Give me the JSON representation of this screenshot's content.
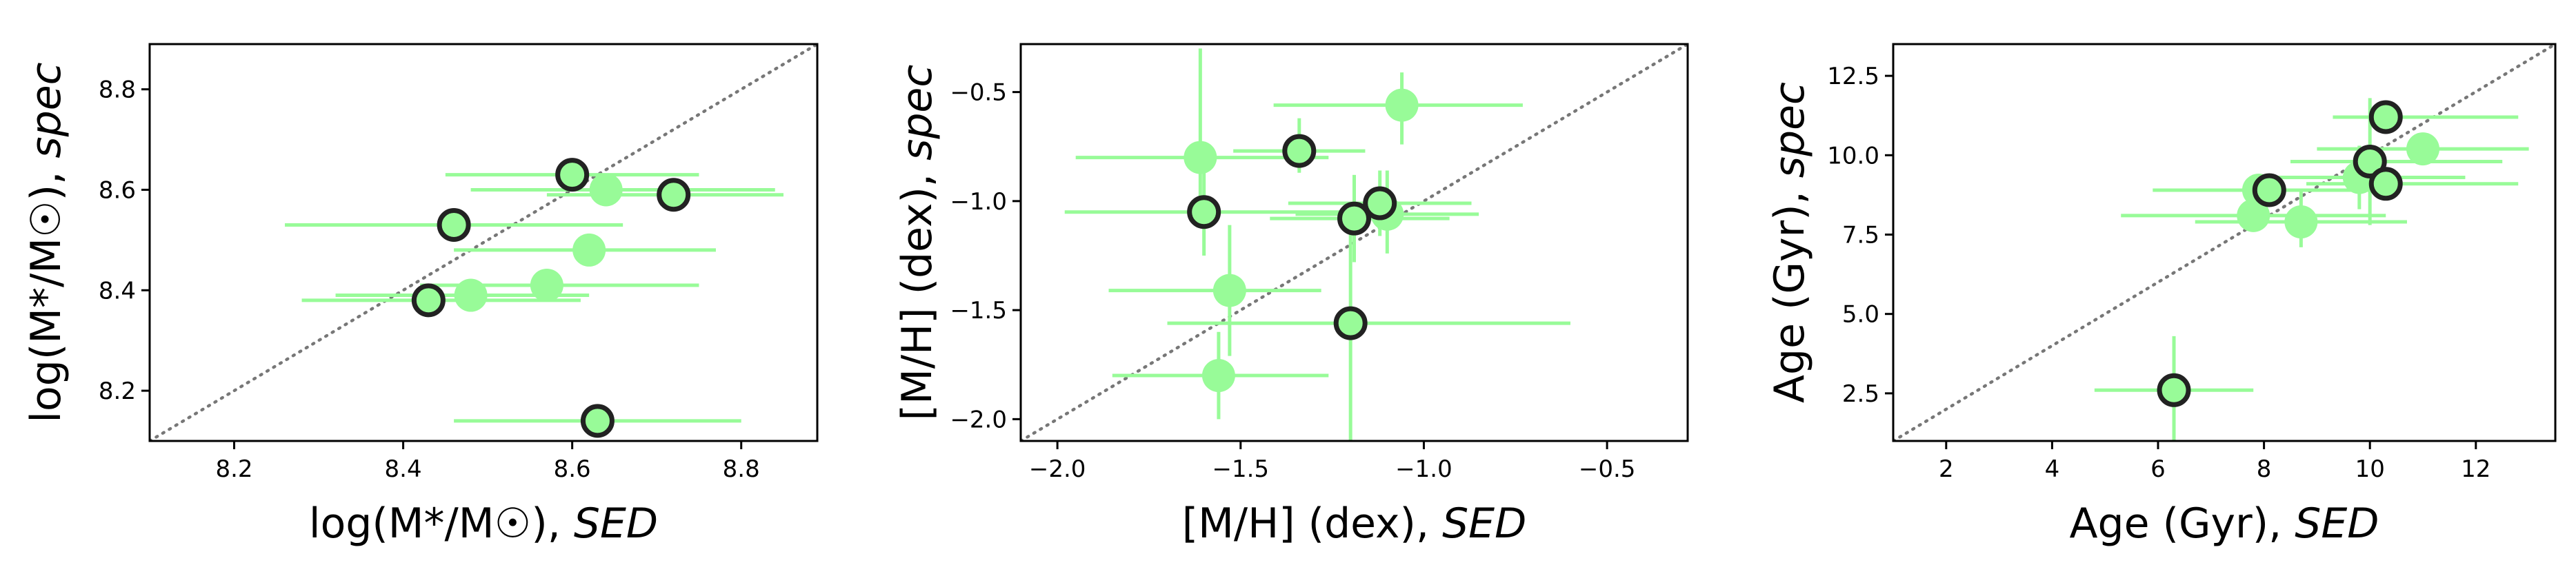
{
  "colors": {
    "marker_fill": "#98FB98",
    "marker_edge": "#222222",
    "errorbar": "#98FB98",
    "identity_line": "#777777",
    "axes": "#000000"
  },
  "chart_data": [
    {
      "type": "scatter",
      "xlabel": "log(M*/M☉), SED",
      "ylabel": "log(M*/M☉), spec",
      "xlim": [
        8.1,
        8.89
      ],
      "ylim": [
        8.1,
        8.89
      ],
      "xticks": [
        "8.2",
        "8.4",
        "8.6",
        "8.8"
      ],
      "yticks": [
        "8.2",
        "8.4",
        "8.6",
        "8.8"
      ],
      "identity_line": true,
      "series": [
        {
          "style": "filled-light",
          "points": [
            {
              "x": 8.64,
              "y": 8.6,
              "xerr": [
                0.16,
                0.2
              ],
              "yerr": [
                0.0,
                0.0
              ]
            },
            {
              "x": 8.62,
              "y": 8.48,
              "xerr": [
                0.16,
                0.15
              ],
              "yerr": [
                0.0,
                0.0
              ]
            },
            {
              "x": 8.57,
              "y": 8.41,
              "xerr": [
                0.15,
                0.18
              ],
              "yerr": [
                0.0,
                0.0
              ]
            },
            {
              "x": 8.48,
              "y": 8.39,
              "xerr": [
                0.16,
                0.14
              ],
              "yerr": [
                0.0,
                0.0
              ]
            }
          ]
        },
        {
          "style": "outlined",
          "points": [
            {
              "x": 8.6,
              "y": 8.63,
              "xerr": [
                0.15,
                0.15
              ],
              "yerr": [
                0.0,
                0.0
              ]
            },
            {
              "x": 8.72,
              "y": 8.59,
              "xerr": [
                0.15,
                0.13
              ],
              "yerr": [
                0.0,
                0.0
              ]
            },
            {
              "x": 8.46,
              "y": 8.53,
              "xerr": [
                0.2,
                0.2
              ],
              "yerr": [
                0.0,
                0.0
              ]
            },
            {
              "x": 8.43,
              "y": 8.38,
              "xerr": [
                0.15,
                0.18
              ],
              "yerr": [
                0.0,
                0.0
              ]
            },
            {
              "x": 8.63,
              "y": 8.14,
              "xerr": [
                0.17,
                0.17
              ],
              "yerr": [
                0.0,
                0.0
              ]
            }
          ]
        }
      ]
    },
    {
      "type": "scatter",
      "xlabel": "[M/H] (dex), SED",
      "ylabel": "[M/H] (dex), spec",
      "xlim": [
        -2.1,
        -0.28
      ],
      "ylim": [
        -2.1,
        -0.28
      ],
      "xticks": [
        "−2.0",
        "−1.5",
        "−1.0",
        "−0.5"
      ],
      "yticks": [
        "−2.0",
        "−1.5",
        "−1.0",
        "−0.5"
      ],
      "identity_line": true,
      "series": [
        {
          "style": "filled-light",
          "points": [
            {
              "x": -1.06,
              "y": -0.56,
              "xerr": [
                0.35,
                0.33
              ],
              "yerr": [
                0.18,
                0.15
              ]
            },
            {
              "x": -1.61,
              "y": -0.8,
              "xerr": [
                0.34,
                0.35
              ],
              "yerr": [
                0.2,
                0.5
              ]
            },
            {
              "x": -1.1,
              "y": -1.06,
              "xerr": [
                0.25,
                0.25
              ],
              "yerr": [
                0.18,
                0.2
              ]
            },
            {
              "x": -1.53,
              "y": -1.41,
              "xerr": [
                0.33,
                0.25
              ],
              "yerr": [
                0.3,
                0.3
              ]
            },
            {
              "x": -1.56,
              "y": -1.8,
              "xerr": [
                0.29,
                0.3
              ],
              "yerr": [
                0.2,
                0.2
              ]
            }
          ]
        },
        {
          "style": "outlined",
          "points": [
            {
              "x": -1.34,
              "y": -0.77,
              "xerr": [
                0.18,
                0.18
              ],
              "yerr": [
                0.1,
                0.15
              ]
            },
            {
              "x": -1.6,
              "y": -1.05,
              "xerr": [
                0.38,
                0.38
              ],
              "yerr": [
                0.2,
                0.2
              ]
            },
            {
              "x": -1.19,
              "y": -1.08,
              "xerr": [
                0.23,
                0.26
              ],
              "yerr": [
                0.2,
                0.2
              ]
            },
            {
              "x": -1.12,
              "y": -1.01,
              "xerr": [
                0.25,
                0.25
              ],
              "yerr": [
                0.15,
                0.15
              ]
            },
            {
              "x": -1.2,
              "y": -1.56,
              "xerr": [
                0.5,
                0.6
              ],
              "yerr": [
                0.55,
                0.55
              ]
            }
          ]
        }
      ]
    },
    {
      "type": "scatter",
      "xlabel": "Age (Gyr), SED",
      "ylabel": "Age (Gyr), spec",
      "xlim": [
        1.0,
        13.5
      ],
      "ylim": [
        1.0,
        13.5
      ],
      "xticks": [
        "2",
        "4",
        "6",
        "8",
        "10",
        "12"
      ],
      "yticks": [
        "2.5",
        "5.0",
        "7.5",
        "10.0",
        "12.5"
      ],
      "identity_line": true,
      "series": [
        {
          "style": "filled-light",
          "points": [
            {
              "x": 11.0,
              "y": 10.2,
              "xerr": [
                2.0,
                2.0
              ],
              "yerr": [
                0.5,
                0.5
              ]
            },
            {
              "x": 9.8,
              "y": 9.3,
              "xerr": [
                2.0,
                2.0
              ],
              "yerr": [
                1.0,
                1.0
              ]
            },
            {
              "x": 7.8,
              "y": 8.1,
              "xerr": [
                2.5,
                2.5
              ],
              "yerr": [
                0.5,
                0.5
              ]
            },
            {
              "x": 7.9,
              "y": 8.9,
              "xerr": [
                2.0,
                2.0
              ],
              "yerr": [
                0.5,
                0.5
              ]
            },
            {
              "x": 8.7,
              "y": 7.9,
              "xerr": [
                2.0,
                2.0
              ],
              "yerr": [
                0.8,
                1.0
              ]
            }
          ]
        },
        {
          "style": "outlined",
          "points": [
            {
              "x": 10.3,
              "y": 11.2,
              "xerr": [
                1.0,
                2.5
              ],
              "yerr": [
                0.5,
                0.5
              ]
            },
            {
              "x": 10.0,
              "y": 9.8,
              "xerr": [
                1.5,
                2.5
              ],
              "yerr": [
                2.0,
                2.0
              ]
            },
            {
              "x": 10.3,
              "y": 9.1,
              "xerr": [
                1.5,
                2.5
              ],
              "yerr": [
                0.5,
                0.5
              ]
            },
            {
              "x": 8.1,
              "y": 8.9,
              "xerr": [
                1.5,
                2.0
              ],
              "yerr": [
                0.5,
                0.5
              ]
            },
            {
              "x": 6.3,
              "y": 2.6,
              "xerr": [
                1.5,
                1.5
              ],
              "yerr": [
                1.7,
                1.7
              ]
            }
          ]
        }
      ]
    }
  ]
}
